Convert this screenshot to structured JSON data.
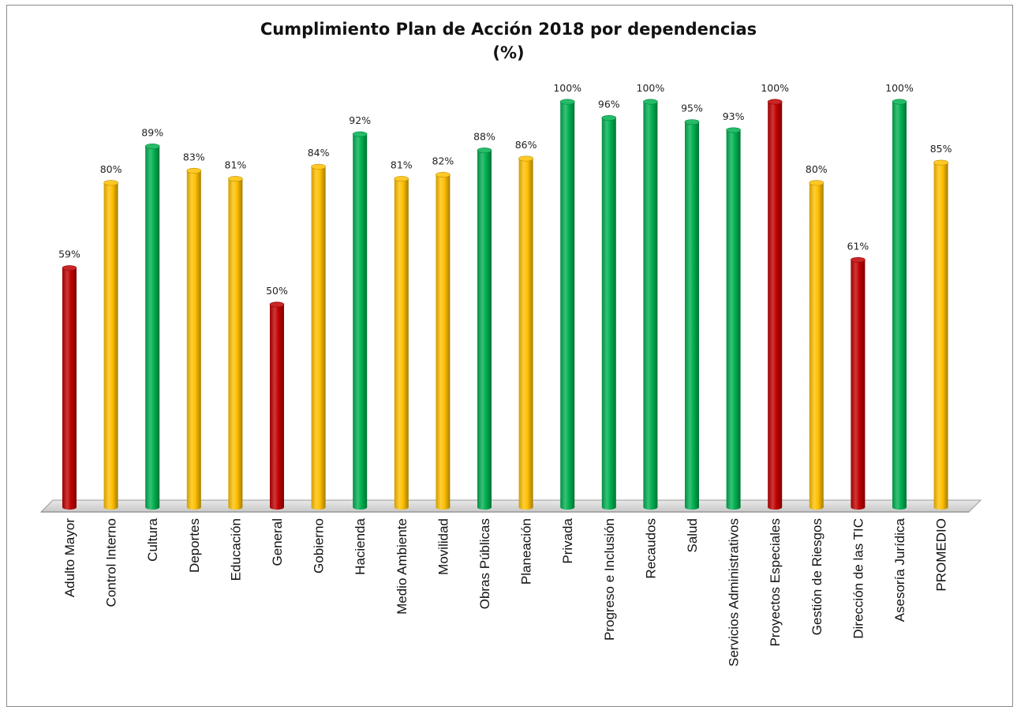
{
  "chart_data": {
    "type": "bar",
    "title": "Cumplimiento Plan de Acción 2018 por dependencias",
    "subtitle": "(%)",
    "categories": [
      "Adulto Mayor",
      "Control Interno",
      "Cultura",
      "Deportes",
      "Educación",
      "General",
      "Gobierno",
      "Hacienda",
      "Medio Ambiente",
      "Movilidad",
      "Obras Públicas",
      "Planeación",
      "Privada",
      "Progreso e Inclusión",
      "Recaudos",
      "Salud",
      "Servicios Administrativos",
      "Proyectos Especiales",
      "Gestión de Riesgos",
      "Dirección de las TIC",
      "Asesoría Jurídica",
      "PROMEDIO"
    ],
    "values": [
      59,
      80,
      89,
      83,
      81,
      50,
      84,
      92,
      81,
      82,
      88,
      86,
      100,
      96,
      100,
      95,
      93,
      100,
      80,
      61,
      100,
      85
    ],
    "value_labels": [
      "59%",
      "80%",
      "89%",
      "83%",
      "81%",
      "50%",
      "84%",
      "92%",
      "81%",
      "82%",
      "88%",
      "86%",
      "100%",
      "96%",
      "100%",
      "95%",
      "93%",
      "100%",
      "80%",
      "61%",
      "100%",
      "85%"
    ],
    "bar_colors": [
      "#c00000",
      "#ffc000",
      "#00b050",
      "#ffc000",
      "#ffc000",
      "#c00000",
      "#ffc000",
      "#00b050",
      "#ffc000",
      "#ffc000",
      "#00b050",
      "#ffc000",
      "#00b050",
      "#00b050",
      "#00b050",
      "#00b050",
      "#00b050",
      "#c00000",
      "#ffc000",
      "#c00000",
      "#00b050",
      "#ffc000"
    ],
    "ylim": [
      0,
      100
    ],
    "grid": false,
    "legend": "none"
  }
}
